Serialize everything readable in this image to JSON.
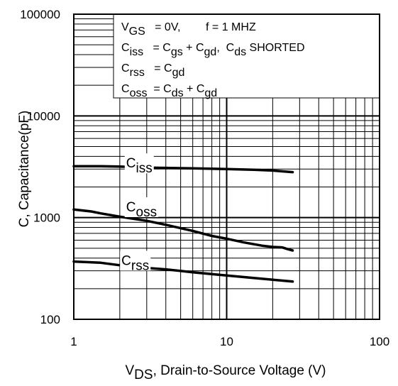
{
  "chart_data": {
    "type": "line",
    "x_scale": "log",
    "y_scale": "log",
    "xlim": [
      1,
      100
    ],
    "ylim": [
      100,
      100000
    ],
    "grid": true,
    "x_ticks": [
      "1",
      "10",
      "100"
    ],
    "y_ticks": [
      "100",
      "1000",
      "10000",
      "100000"
    ],
    "xlabel": {
      "main": "V",
      "sub": "DS",
      "rest": ", Drain-to-Source Voltage (V)"
    },
    "ylabel": "C, Capacitance(pF)",
    "legend_box": {
      "placement": "top-right",
      "lines": [
        {
          "id": "cond",
          "parts": [
            [
              "V",
              ""
            ],
            [
              "GS",
              "sub"
            ],
            [
              "   = 0V,        f = 1 MHZ",
              ""
            ]
          ]
        },
        {
          "id": "ciss",
          "parts": [
            [
              "C",
              ""
            ],
            [
              "iss",
              "sub"
            ],
            [
              "   = C",
              ""
            ],
            [
              "gs",
              "sub"
            ],
            [
              " + C",
              ""
            ],
            [
              "gd",
              "sub"
            ],
            [
              ",  C",
              ""
            ],
            [
              "ds",
              "sub"
            ],
            [
              " SHORTED",
              ""
            ]
          ]
        },
        {
          "id": "crss",
          "parts": [
            [
              "C",
              ""
            ],
            [
              "rss",
              "sub"
            ],
            [
              "   = C",
              ""
            ],
            [
              "gd",
              "sub"
            ]
          ]
        },
        {
          "id": "coss",
          "parts": [
            [
              "C",
              ""
            ],
            [
              "oss",
              "sub"
            ],
            [
              "  = C",
              ""
            ],
            [
              "ds",
              "sub"
            ],
            [
              " + C",
              ""
            ],
            [
              "gd",
              "sub"
            ]
          ]
        }
      ]
    },
    "series": [
      {
        "name": "Ciss",
        "label_main": "C",
        "label_sub": "iss",
        "label_at": [
          2.2,
          3100
        ],
        "x": [
          1,
          1.5,
          2,
          3,
          4,
          6,
          10,
          15,
          20,
          27
        ],
        "values": [
          3200,
          3200,
          3180,
          3100,
          3080,
          3050,
          3000,
          2950,
          2900,
          2800
        ]
      },
      {
        "name": "Coss",
        "label_main": "C",
        "label_sub": "oss",
        "label_at": [
          2.2,
          1150
        ],
        "x": [
          1,
          1.3,
          1.5,
          2,
          3,
          4,
          6,
          8,
          10,
          13,
          17,
          20,
          23,
          25,
          27
        ],
        "values": [
          1200,
          1150,
          1100,
          1020,
          930,
          850,
          740,
          660,
          620,
          570,
          530,
          515,
          510,
          490,
          475
        ]
      },
      {
        "name": "Crss",
        "label_main": "C",
        "label_sub": "rss",
        "label_at": [
          2.05,
          342
        ],
        "x": [
          1,
          1.5,
          2,
          3,
          4,
          6,
          10,
          15,
          20,
          27
        ],
        "values": [
          370,
          360,
          340,
          320,
          310,
          290,
          270,
          255,
          245,
          235
        ]
      }
    ]
  }
}
